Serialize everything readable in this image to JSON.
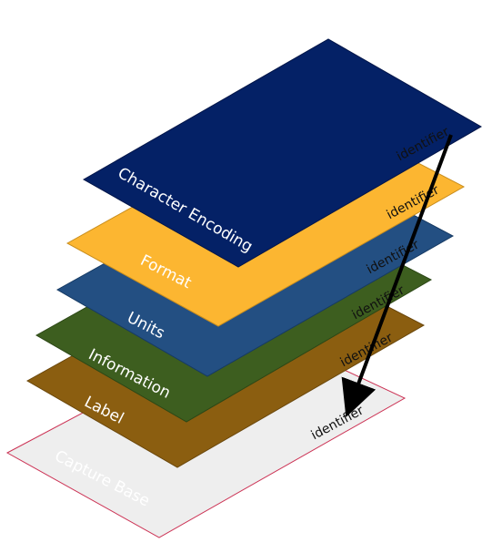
{
  "layers": [
    {
      "key": "capture-base",
      "label": "Capture Base",
      "identifier": "identifier",
      "fill": "#eeeeee",
      "stroke": "#cc3355",
      "text_color": "#ffffff"
    },
    {
      "key": "label",
      "label": "Label",
      "identifier": "identifier",
      "fill": "#8b5e10",
      "stroke": "#6a470c",
      "text_color": "#ffffff"
    },
    {
      "key": "information",
      "label": "Information",
      "identifier": "identifier",
      "fill": "#3d5e1f",
      "stroke": "#2c4716",
      "text_color": "#ffffff"
    },
    {
      "key": "units",
      "label": "Units",
      "identifier": "identifier",
      "fill": "#234f82",
      "stroke": "#163a63",
      "text_color": "#ffffff"
    },
    {
      "key": "format",
      "label": "Format",
      "identifier": "identifier",
      "fill": "#fcb631",
      "stroke": "#c98e1e",
      "text_color": "#ffffff"
    },
    {
      "key": "character-encoding",
      "label": "Character Encoding",
      "identifier": "identifier",
      "fill": "#042166",
      "stroke": "#021548",
      "text_color": "#ffffff"
    }
  ],
  "arrow_color": "#000000"
}
